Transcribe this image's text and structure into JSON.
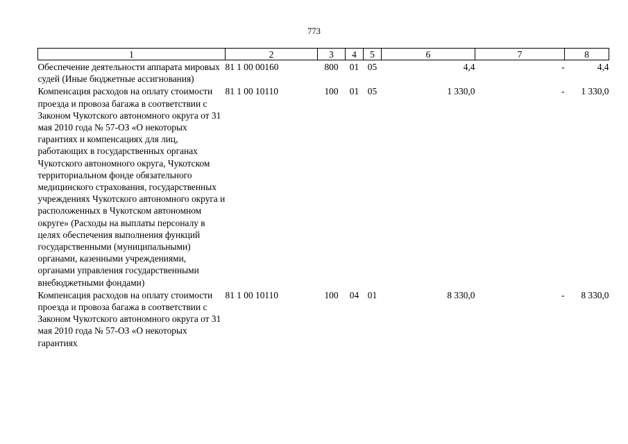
{
  "page": {
    "number": "773"
  },
  "table": {
    "headers": [
      "1",
      "2",
      "3",
      "4",
      "5",
      "6",
      "7",
      "8"
    ],
    "rows": [
      {
        "name": "Обеспечение деятельности аппарата мировых судей (Иные бюджетные ассигнования)",
        "code": "81 1 00 00160",
        "vr": "800",
        "rz": "01",
        "pr": "05",
        "col6": "4,4",
        "col7": "-",
        "col8": "4,4"
      },
      {
        "name": "Компенсация расходов на оплату стоимости проезда и провоза багажа в соответствии с Законом Чукотского автономного округа от 31 мая 2010 года № 57-ОЗ «О некоторых гарантиях и компенсациях для лиц, работающих в государственных органах Чукотского автономного округа, Чукотском территориальном фонде обязательного медицинского страхования, государственных учреждениях Чукотского автономного округа и расположенных в Чукотском автономном округе» (Расходы на выплаты персоналу в целях обеспечения выполнения функций государственными (муниципальными) органами, казенными учреждениями, органами управления государственными внебюджетными фондами)",
        "code": "81 1 00 10110",
        "vr": "100",
        "rz": "01",
        "pr": "05",
        "col6": "1 330,0",
        "col7": "-",
        "col8": "1 330,0"
      },
      {
        "name": "Компенсация расходов на оплату стоимости проезда и провоза багажа в соответствии с Законом Чукотского автономного округа от 31 мая 2010 года № 57-ОЗ «О некоторых гарантиях",
        "code": "81 1 00 10110",
        "vr": "100",
        "rz": "04",
        "pr": "01",
        "col6": "8 330,0",
        "col7": "-",
        "col8": "8 330,0"
      }
    ]
  }
}
